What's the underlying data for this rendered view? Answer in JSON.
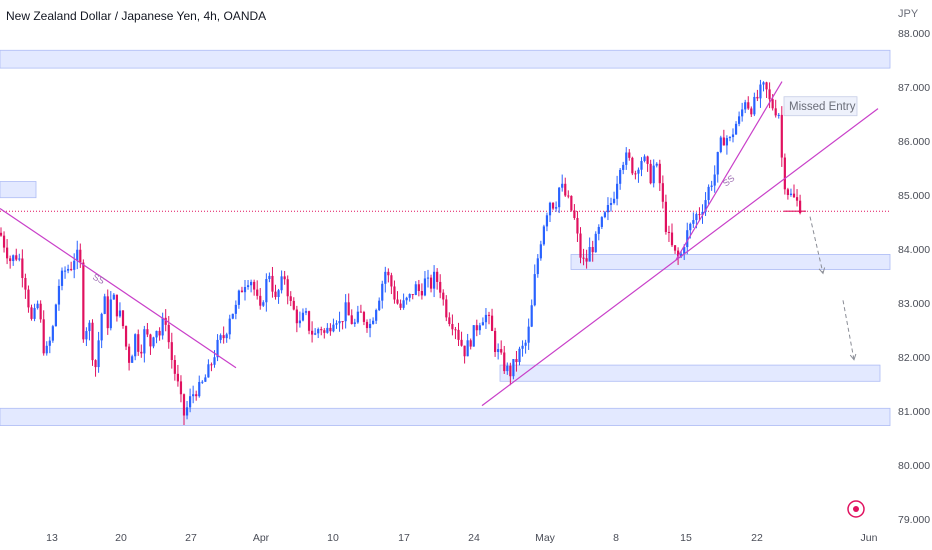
{
  "header": {
    "title": "New Zealand Dollar / Japanese Yen, 4h, OANDA"
  },
  "chart_data": {
    "type": "candlestick",
    "title": "New Zealand Dollar / Japanese Yen, 4h, OANDA",
    "unit": "JPY",
    "ylim": [
      78.9,
      88.3
    ],
    "y_ticks": [
      "88.000",
      "87.000",
      "86.000",
      "85.000",
      "84.000",
      "83.000",
      "82.000",
      "81.000",
      "80.000",
      "79.000"
    ],
    "x_ticks": [
      "13",
      "20",
      "27",
      "Apr",
      "10",
      "17",
      "24",
      "May",
      "8",
      "15",
      "22",
      "Jun"
    ],
    "current_price": 84.7,
    "colors": {
      "up": "#2962ff",
      "down": "#e0115f",
      "zone": "#e3e9ff",
      "trendline": "#c940c9"
    },
    "zones": [
      {
        "from": 87.35,
        "to": 87.68
      },
      {
        "from": 84.95,
        "to": 85.25
      },
      {
        "from": 83.62,
        "to": 83.9
      },
      {
        "from": 81.55,
        "to": 81.85
      },
      {
        "from": 80.73,
        "to": 81.05
      }
    ],
    "annotations": {
      "missed_entry": "Missed Entry",
      "ss_1": "SS",
      "ss_2": "SS"
    },
    "waypoints": [
      [
        0,
        84.3
      ],
      [
        10,
        83.8
      ],
      [
        18,
        83.9
      ],
      [
        25,
        83.4
      ],
      [
        32,
        82.6
      ],
      [
        38,
        83.0
      ],
      [
        45,
        82.0
      ],
      [
        52,
        82.4
      ],
      [
        58,
        83.3
      ],
      [
        65,
        83.6
      ],
      [
        72,
        83.7
      ],
      [
        75,
        83.9
      ],
      [
        80,
        83.8
      ],
      [
        84,
        82.2
      ],
      [
        88,
        82.8
      ],
      [
        93,
        82.0
      ],
      [
        96,
        81.8
      ],
      [
        100,
        82.6
      ],
      [
        104,
        83.1
      ],
      [
        108,
        82.6
      ],
      [
        112,
        83.2
      ],
      [
        116,
        82.9
      ],
      [
        122,
        82.7
      ],
      [
        126,
        82.2
      ],
      [
        130,
        81.9
      ],
      [
        135,
        82.4
      ],
      [
        140,
        82.1
      ],
      [
        145,
        82.5
      ],
      [
        150,
        82.2
      ],
      [
        155,
        82.6
      ],
      [
        160,
        82.4
      ],
      [
        165,
        82.8
      ],
      [
        170,
        82.1
      ],
      [
        175,
        81.7
      ],
      [
        180,
        81.3
      ],
      [
        183,
        80.9
      ],
      [
        186,
        81.0
      ],
      [
        190,
        81.2
      ],
      [
        195,
        81.4
      ],
      [
        200,
        81.4
      ],
      [
        205,
        81.6
      ],
      [
        210,
        81.8
      ],
      [
        215,
        82.1
      ],
      [
        220,
        82.3
      ],
      [
        225,
        82.4
      ],
      [
        230,
        82.8
      ],
      [
        236,
        82.9
      ],
      [
        240,
        83.2
      ],
      [
        245,
        83.4
      ],
      [
        250,
        83.5
      ],
      [
        255,
        83.2
      ],
      [
        260,
        82.8
      ],
      [
        265,
        83.3
      ],
      [
        270,
        83.6
      ],
      [
        275,
        83.0
      ],
      [
        280,
        83.3
      ],
      [
        285,
        83.5
      ],
      [
        290,
        83.0
      ],
      [
        295,
        82.8
      ],
      [
        300,
        82.6
      ],
      [
        305,
        82.8
      ],
      [
        310,
        82.5
      ],
      [
        315,
        82.4
      ],
      [
        320,
        82.6
      ],
      [
        325,
        82.4
      ],
      [
        330,
        82.6
      ],
      [
        335,
        82.8
      ],
      [
        340,
        82.6
      ],
      [
        345,
        82.9
      ],
      [
        350,
        82.7
      ],
      [
        355,
        82.6
      ],
      [
        360,
        82.8
      ],
      [
        365,
        82.7
      ],
      [
        370,
        82.6
      ],
      [
        375,
        82.9
      ],
      [
        380,
        83.2
      ],
      [
        385,
        83.6
      ],
      [
        390,
        83.4
      ],
      [
        395,
        83.1
      ],
      [
        400,
        82.9
      ],
      [
        405,
        83.0
      ],
      [
        410,
        83.1
      ],
      [
        415,
        83.3
      ],
      [
        420,
        83.2
      ],
      [
        425,
        83.4
      ],
      [
        430,
        83.3
      ],
      [
        435,
        83.5
      ],
      [
        440,
        83.3
      ],
      [
        445,
        82.9
      ],
      [
        450,
        82.7
      ],
      [
        455,
        82.6
      ],
      [
        460,
        82.3
      ],
      [
        465,
        82.1
      ],
      [
        470,
        82.3
      ],
      [
        475,
        82.5
      ],
      [
        480,
        82.7
      ],
      [
        485,
        82.8
      ],
      [
        490,
        82.6
      ],
      [
        495,
        82.2
      ],
      [
        500,
        82.0
      ],
      [
        505,
        81.8
      ],
      [
        510,
        81.7
      ],
      [
        515,
        81.9
      ],
      [
        520,
        82.1
      ],
      [
        525,
        82.2
      ],
      [
        530,
        82.6
      ],
      [
        535,
        83.5
      ],
      [
        540,
        84.1
      ],
      [
        545,
        84.6
      ],
      [
        550,
        84.9
      ],
      [
        555,
        84.8
      ],
      [
        560,
        85.2
      ],
      [
        565,
        85.0
      ],
      [
        570,
        84.8
      ],
      [
        575,
        84.5
      ],
      [
        580,
        83.9
      ],
      [
        585,
        83.7
      ],
      [
        590,
        84.0
      ],
      [
        595,
        84.1
      ],
      [
        600,
        84.4
      ],
      [
        605,
        84.6
      ],
      [
        610,
        84.8
      ],
      [
        615,
        85.1
      ],
      [
        620,
        85.6
      ],
      [
        625,
        85.7
      ],
      [
        630,
        85.6
      ],
      [
        635,
        85.4
      ],
      [
        640,
        85.7
      ],
      [
        645,
        85.6
      ],
      [
        650,
        85.3
      ],
      [
        655,
        85.6
      ],
      [
        660,
        85.2
      ],
      [
        665,
        84.5
      ],
      [
        670,
        84.1
      ],
      [
        675,
        83.9
      ],
      [
        680,
        83.8
      ],
      [
        685,
        84.2
      ],
      [
        690,
        84.4
      ],
      [
        695,
        84.6
      ],
      [
        700,
        84.7
      ],
      [
        705,
        84.9
      ],
      [
        710,
        85.2
      ],
      [
        715,
        85.4
      ],
      [
        720,
        85.9
      ],
      [
        725,
        86.1
      ],
      [
        730,
        86.0
      ],
      [
        735,
        86.3
      ],
      [
        740,
        86.4
      ],
      [
        745,
        86.8
      ],
      [
        750,
        86.6
      ],
      [
        755,
        86.7
      ],
      [
        760,
        86.9
      ],
      [
        765,
        87.0
      ],
      [
        770,
        86.7
      ],
      [
        775,
        86.6
      ],
      [
        780,
        86.5
      ],
      [
        782,
        85.6
      ],
      [
        784,
        85.3
      ],
      [
        787,
        85.1
      ],
      [
        790,
        85.0
      ],
      [
        795,
        84.9
      ],
      [
        800,
        84.8
      ],
      [
        803,
        84.75
      ]
    ]
  }
}
